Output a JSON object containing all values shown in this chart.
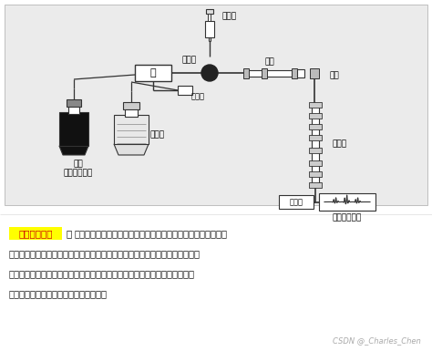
{
  "bg_color": "#ffffff",
  "diagram_bg": "#e8e8e8",
  "highlight_color": "#ffff00",
  "highlight_text": "其工作流程为",
  "colon": "：",
  "body_lines": [
    "高压输液泵将贮液器中的流动相以稳定的流速（或压力）输送至",
    "分析体系，在色谱柱之前通过进样器将样品导人，流动相将样品依次带入预柱、",
    "色谱柱，在色谱柱中各组分被分离，并依次随流动相流至检测器，检测到的信",
    "号送至数据处理系统记录、处理和保存。"
  ],
  "watermark": "CSDN @_Charles_Chen",
  "lbl_injection": "注射器",
  "lbl_sampler": "进样器",
  "lbl_pump": "泵",
  "lbl_mixer": "混合室",
  "lbl_pre_col": "预柱",
  "lbl_connector": "接头",
  "lbl_column": "色谱柱",
  "lbl_detector": "检测器",
  "lbl_data_sys": "数据处理系统",
  "lbl_solvent": "溶剑",
  "lbl_reservoir": "贮液器",
  "lbl_hp_system": "高压输液系统"
}
